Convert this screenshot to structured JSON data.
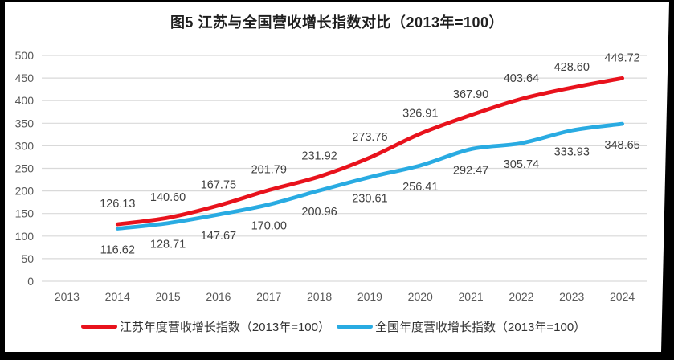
{
  "title": "图5  江苏与全国营收增长指数对比（2013年=100）",
  "colors": {
    "jiangsu_line": "#e8121c",
    "national_line": "#29abe2",
    "gridline": "#d9d9d9",
    "axis_text": "#595959",
    "data_label_text": "#404040",
    "title_text": "#1f1f1f",
    "page_background": "#ffffff",
    "scan_border": "#000000"
  },
  "chart_data": {
    "type": "line",
    "title": "图5  江苏与全国营收增长指数对比（2013年=100）",
    "categories": [
      "2013",
      "2014",
      "2015",
      "2016",
      "2017",
      "2018",
      "2019",
      "2020",
      "2021",
      "2022",
      "2023",
      "2024"
    ],
    "series": [
      {
        "key": "jiangsu",
        "name": "江苏年度营收增长指数（2013年=100）",
        "color": "#e8121c",
        "label_position": "above",
        "values": [
          null,
          126.13,
          140.6,
          167.75,
          201.79,
          231.92,
          273.76,
          326.91,
          367.9,
          403.64,
          428.6,
          449.72
        ]
      },
      {
        "key": "national",
        "name": "全国年度营收增长指数（2013年=100）",
        "color": "#29abe2",
        "label_position": "below",
        "values": [
          null,
          116.62,
          128.71,
          147.67,
          170.0,
          200.96,
          230.61,
          256.41,
          292.47,
          305.74,
          333.93,
          348.65
        ]
      }
    ],
    "ylim": [
      0,
      500
    ],
    "yticks": [
      0,
      50,
      100,
      150,
      200,
      250,
      300,
      350,
      400,
      450,
      500
    ],
    "grid": true,
    "smoothed_lines": true,
    "data_labels_decimals": 2,
    "legend_position": "bottom",
    "baseline_note": "2013年=100"
  }
}
